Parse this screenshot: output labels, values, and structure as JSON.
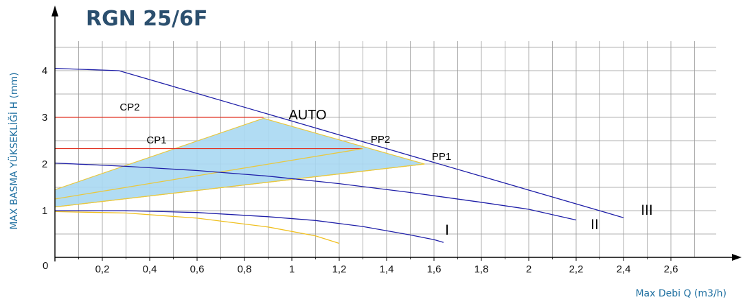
{
  "chart_data": {
    "type": "line",
    "title": "RGN 25/6F",
    "xlabel": "Max Debi Q (m3/h)",
    "ylabel": "MAX BASMA YÜKSEKLİĞİ H (mm)",
    "origin_label": "0",
    "xlim": [
      0,
      2.6
    ],
    "ylim": [
      0,
      4.5
    ],
    "grid": true,
    "x_ticks": [
      {
        "value": 0.2,
        "label": "0,2"
      },
      {
        "value": 0.4,
        "label": "0,4"
      },
      {
        "value": 0.6,
        "label": "0,6"
      },
      {
        "value": 0.8,
        "label": "0,8"
      },
      {
        "value": 1.0,
        "label": "1"
      },
      {
        "value": 1.2,
        "label": "1,2"
      },
      {
        "value": 1.4,
        "label": "1,4"
      },
      {
        "value": 1.6,
        "label": "1,6"
      },
      {
        "value": 1.8,
        "label": "1,8"
      },
      {
        "value": 2.0,
        "label": "2"
      },
      {
        "value": 2.2,
        "label": "2,2"
      },
      {
        "value": 2.4,
        "label": "2,4"
      },
      {
        "value": 2.6,
        "label": "2,6"
      }
    ],
    "y_ticks": [
      {
        "value": 1,
        "label": "1"
      },
      {
        "value": 2,
        "label": "2"
      },
      {
        "value": 3,
        "label": "3"
      },
      {
        "value": 4,
        "label": "4"
      }
    ],
    "curves": [
      {
        "name": "III",
        "color": "#1f1fa8",
        "points": [
          [
            0,
            4.05
          ],
          [
            0.27,
            4.0
          ],
          [
            2.4,
            0.85
          ]
        ]
      },
      {
        "name": "II",
        "color": "#1f1fa8",
        "points": [
          [
            0,
            2.02
          ],
          [
            0.3,
            1.95
          ],
          [
            0.6,
            1.86
          ],
          [
            0.9,
            1.74
          ],
          [
            1.2,
            1.58
          ],
          [
            1.5,
            1.39
          ],
          [
            1.8,
            1.18
          ],
          [
            2.0,
            1.03
          ],
          [
            2.2,
            0.8
          ]
        ]
      },
      {
        "name": "I",
        "color": "#1f1fa8",
        "points": [
          [
            0,
            1.0
          ],
          [
            0.3,
            1.0
          ],
          [
            0.6,
            0.96
          ],
          [
            0.9,
            0.87
          ],
          [
            1.1,
            0.79
          ],
          [
            1.3,
            0.66
          ],
          [
            1.5,
            0.48
          ],
          [
            1.6,
            0.38
          ],
          [
            1.64,
            0.32
          ]
        ]
      },
      {
        "name": "",
        "color": "#f0c020",
        "points": [
          [
            0,
            0.98
          ],
          [
            0.3,
            0.95
          ],
          [
            0.6,
            0.84
          ],
          [
            0.9,
            0.65
          ],
          [
            1.1,
            0.46
          ],
          [
            1.2,
            0.3
          ]
        ]
      }
    ],
    "auto_region": {
      "label": "AUTO",
      "color": "#a9d8f2",
      "border_color": "#e8c840",
      "points": [
        [
          0,
          1.45
        ],
        [
          0.88,
          2.98
        ],
        [
          1.56,
          2.0
        ],
        [
          0,
          1.08
        ]
      ]
    },
    "constant_pressure": [
      {
        "label": "CP2",
        "value": 3.0,
        "x_end": 0.88,
        "color": "#e03020"
      },
      {
        "label": "CP1",
        "value": 2.33,
        "x_end": 1.3,
        "color": "#e03020"
      }
    ],
    "proportional_pressure": [
      {
        "label": "PP2",
        "color": "#e8c840",
        "points": [
          [
            0,
            1.25
          ],
          [
            1.3,
            2.33
          ]
        ]
      },
      {
        "label": "PP1",
        "color": "#e8c840",
        "points": [
          [
            0,
            1.08
          ],
          [
            1.56,
            2.0
          ]
        ]
      }
    ]
  }
}
